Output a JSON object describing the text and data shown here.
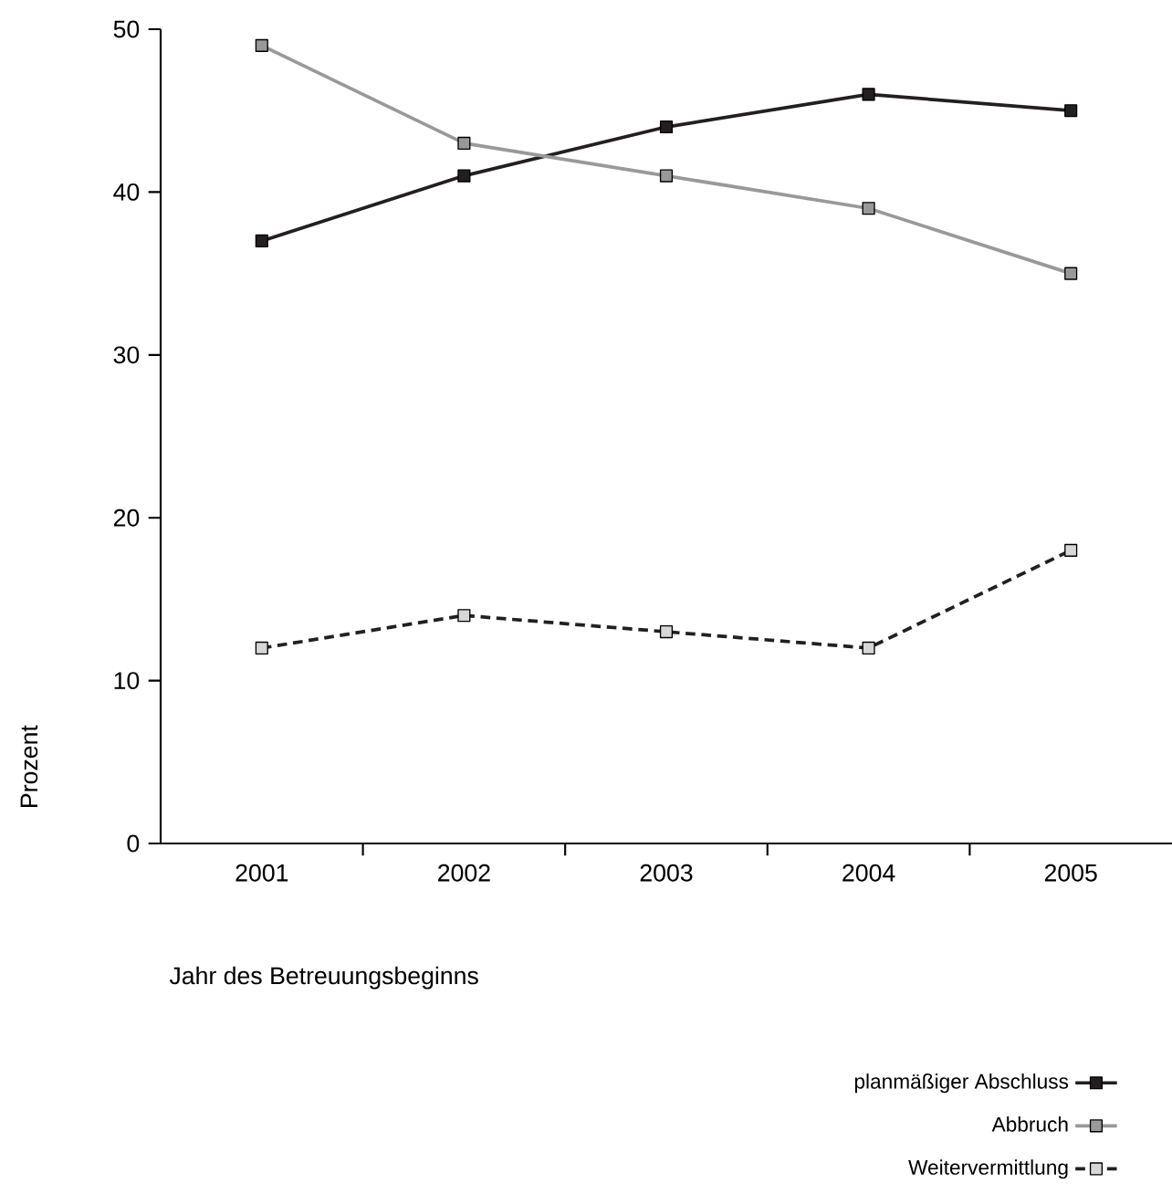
{
  "chart_data": {
    "type": "line",
    "xlabel": "Jahr des Betreuungsbeginns",
    "ylabel": "Prozent",
    "categories": [
      "2001",
      "2002",
      "2003",
      "2004",
      "2005"
    ],
    "series": [
      {
        "name": "planmäßiger Abschluss",
        "color": "#231f20",
        "values": [
          37,
          41,
          44,
          46,
          45
        ],
        "line_style": "solid"
      },
      {
        "name": "Abbruch",
        "color": "#999999",
        "values": [
          49,
          43,
          41,
          39,
          35
        ],
        "line_style": "solid"
      },
      {
        "name": "Weitervermittlung",
        "color": "#231f20",
        "values": [
          12,
          14,
          13,
          12,
          18
        ],
        "line_style": "dashed"
      }
    ],
    "ylim": [
      0,
      50
    ],
    "yticks": [
      0,
      10,
      20,
      30,
      40,
      50
    ],
    "marker": "square",
    "legend": "bottom right"
  }
}
